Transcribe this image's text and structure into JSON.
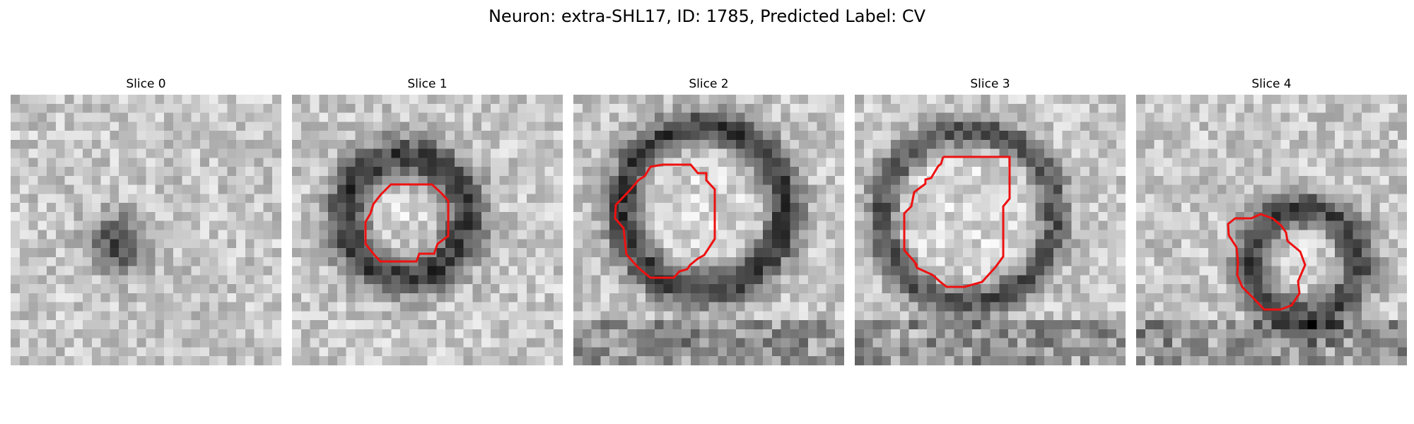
{
  "figure": {
    "title": "Neuron: extra-SHL17, ID: 1785, Predicted Label: CV"
  },
  "panels": [
    {
      "title": "Slice 0",
      "image": "grayscale-em-patch",
      "contour": false
    },
    {
      "title": "Slice 1",
      "image": "grayscale-em-patch",
      "contour": true
    },
    {
      "title": "Slice 2",
      "image": "grayscale-em-patch",
      "contour": true
    },
    {
      "title": "Slice 3",
      "image": "grayscale-em-patch",
      "contour": true
    },
    {
      "title": "Slice 4",
      "image": "grayscale-em-patch",
      "contour": true
    }
  ],
  "colors": {
    "contour": "#ee1111",
    "background": "#ffffff"
  }
}
